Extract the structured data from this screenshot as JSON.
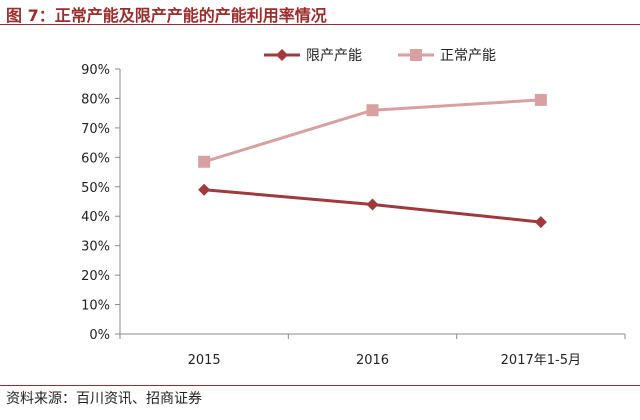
{
  "page": {
    "title": "图 7：正常产能及限产产能的产能利用率情况",
    "source": "资料来源：百川资讯、招商证券"
  },
  "chart_data": {
    "type": "line",
    "categories": [
      "2015",
      "2016",
      "2017年1-5月"
    ],
    "series": [
      {
        "name": "限产产能",
        "values": [
          49,
          44,
          38
        ],
        "color": "#a0393c",
        "marker": "diamond"
      },
      {
        "name": "正常产能",
        "values": [
          58.5,
          76,
          79.5
        ],
        "color": "#d8a0a0",
        "marker": "square"
      }
    ],
    "y_ticks": [
      "0%",
      "10%",
      "20%",
      "30%",
      "40%",
      "50%",
      "60%",
      "70%",
      "80%",
      "90%"
    ],
    "ylim": [
      0,
      90
    ],
    "grid": false,
    "legend_position": "top-right"
  }
}
